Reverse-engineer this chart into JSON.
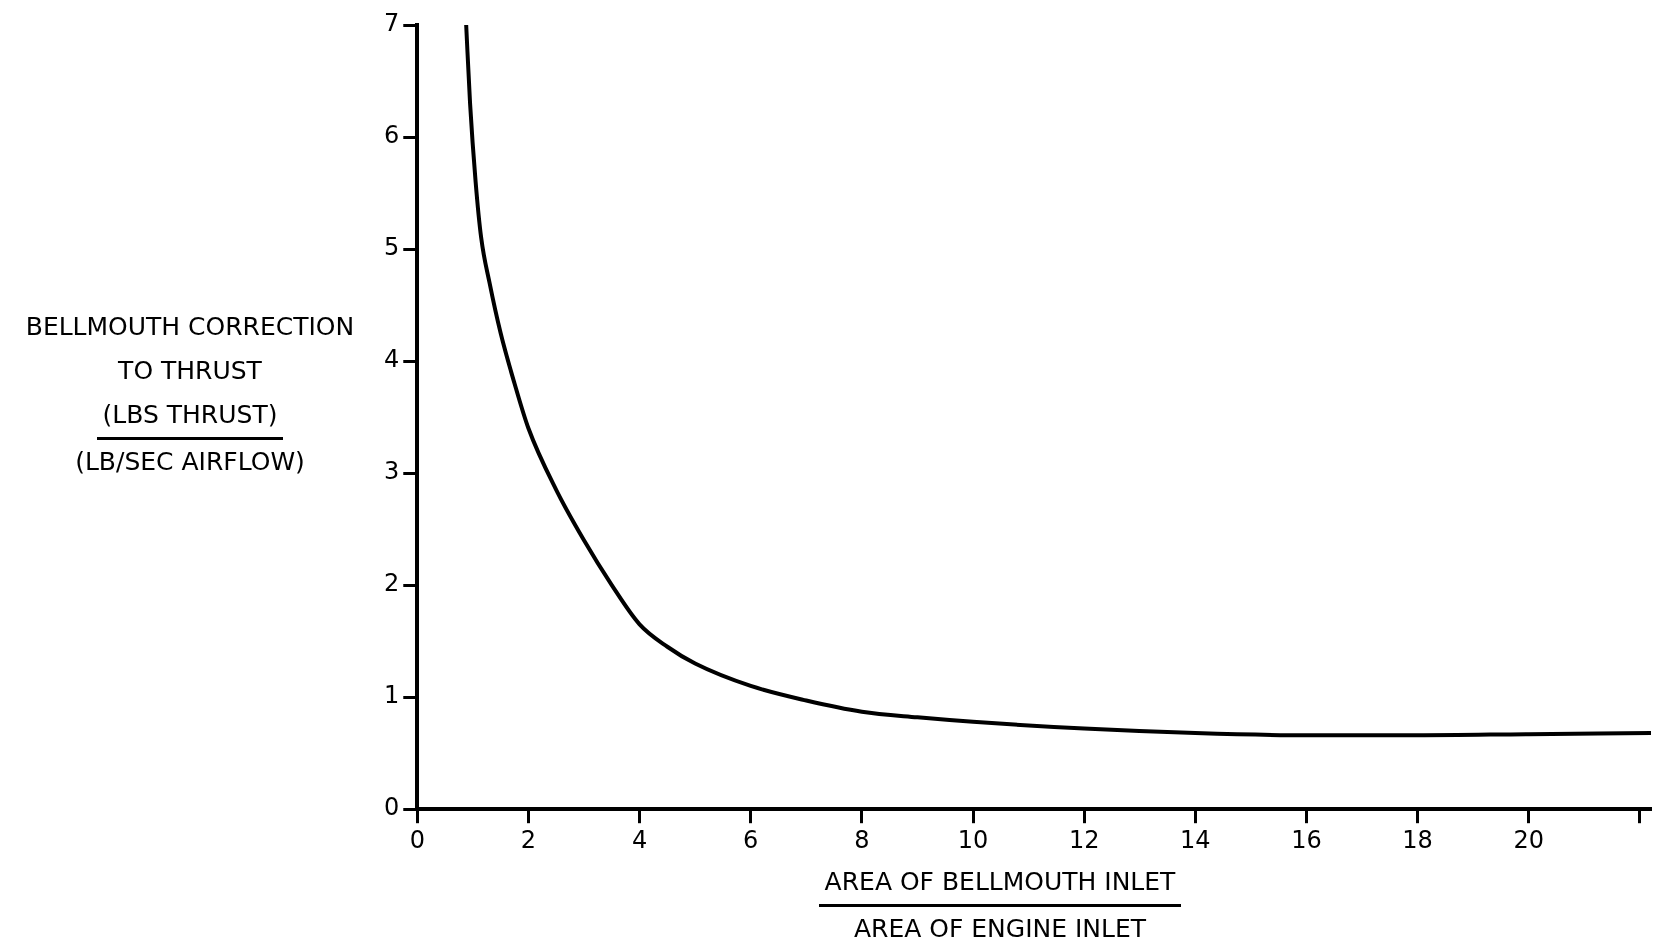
{
  "chart_data": {
    "type": "line",
    "ylabel": "BELLMOUTH CORRECTION\nTO THRUST\n(LBS THRUST)\n(LB/SEC AIRFLOW)",
    "xlabel": "AREA OF BELLMOUTH INLET\nAREA OF ENGINE INLET",
    "series": [
      {
        "color": "#000000",
        "x": [
          0.88,
          0.95,
          1.05,
          1.15,
          1.3,
          1.5,
          1.75,
          2,
          2.5,
          3,
          3.5,
          4,
          4.5,
          5,
          6,
          7,
          8,
          9,
          10,
          12,
          14,
          16,
          18,
          20,
          22.2
        ],
        "values": [
          7.0,
          6.3,
          5.6,
          5.1,
          4.7,
          4.25,
          3.8,
          3.4,
          2.85,
          2.4,
          2.0,
          1.65,
          1.45,
          1.3,
          1.1,
          0.97,
          0.87,
          0.82,
          0.78,
          0.72,
          0.68,
          0.66,
          0.66,
          0.67,
          0.68
        ]
      }
    ],
    "xlim": [
      0,
      22.2
    ],
    "xticks": [
      0,
      2,
      4,
      6,
      8,
      10,
      12,
      14,
      16,
      18,
      20,
      {
        "value": 22,
        "label": null
      }
    ],
    "ylim": [
      0,
      7
    ],
    "yticks": [
      0,
      1,
      2,
      3,
      4,
      5,
      6,
      7
    ],
    "grid": false,
    "legend": false,
    "marker": "none",
    "line_style": "solid"
  }
}
